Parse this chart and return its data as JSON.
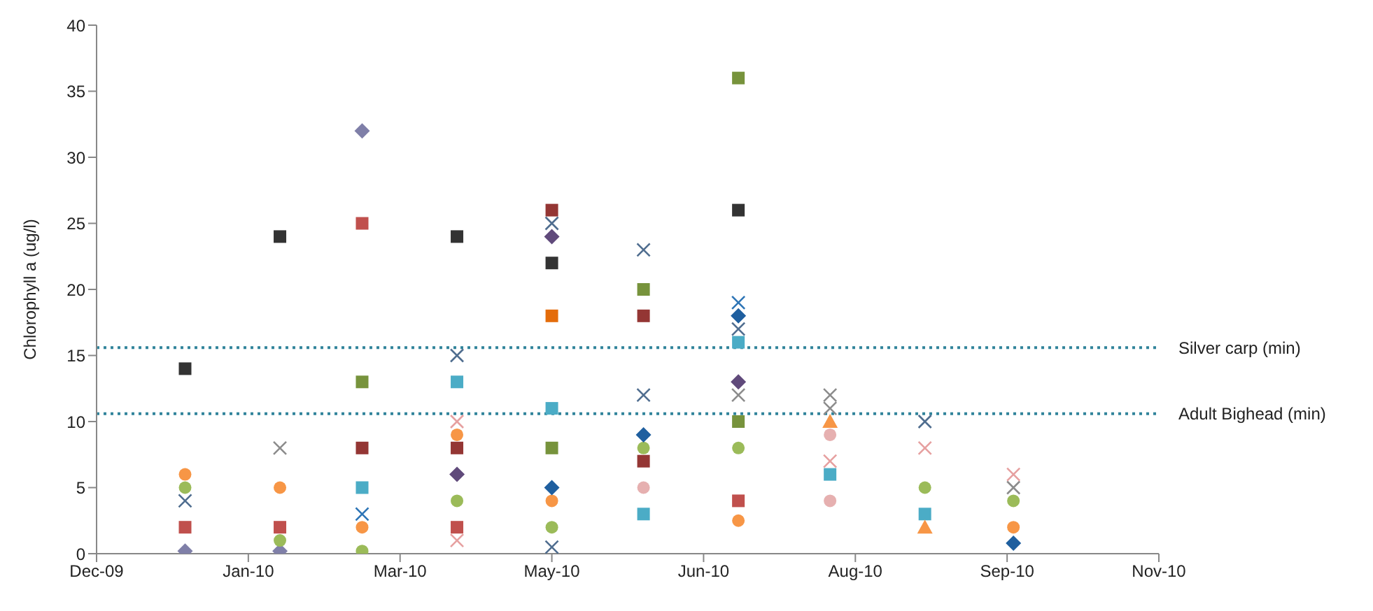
{
  "chart_data": {
    "type": "scatter",
    "ylabel": "Chlorophyll a (ug/l)",
    "xlim": [
      "2009-12-10",
      "2010-11-11"
    ],
    "xticks": [
      {
        "value": "2009-12-10",
        "label": "Dec-09"
      },
      {
        "value": "2010-01-27",
        "label": "Jan-10"
      },
      {
        "value": "2010-03-16",
        "label": "Mar-10"
      },
      {
        "value": "2010-05-03",
        "label": "May-10"
      },
      {
        "value": "2010-06-20",
        "label": "Jun-10"
      },
      {
        "value": "2010-08-07",
        "label": "Aug-10"
      },
      {
        "value": "2010-09-24",
        "label": "Sep-10"
      },
      {
        "value": "2010-11-11",
        "label": "Nov-10"
      }
    ],
    "ylim": [
      0,
      40
    ],
    "yticks": [
      0,
      5,
      10,
      15,
      20,
      25,
      30,
      35,
      40
    ],
    "grid": false,
    "legend": false,
    "ref_lines": [
      {
        "axis": "y",
        "value": 15.6,
        "label": "Silver carp (min)",
        "color": "#31849b",
        "line_style": "dotted"
      },
      {
        "axis": "y",
        "value": 10.6,
        "label": "Adult Bighead (min)",
        "color": "#31849b",
        "line_style": "dotted"
      }
    ],
    "series": [
      {
        "color": "#7f7fa8",
        "marker": "diamond",
        "x": [
          "2010-01-07",
          "2010-02-06",
          "2010-03-04"
        ],
        "values": [
          0.2,
          0.2,
          32
        ]
      },
      {
        "color": "#c0504d",
        "marker": "square",
        "x": [
          "2010-01-07",
          "2010-02-06",
          "2010-03-04",
          "2010-04-03",
          "2010-07-01"
        ],
        "values": [
          2,
          2,
          25,
          2,
          4
        ]
      },
      {
        "color": "#f79646",
        "marker": "circle",
        "x": [
          "2010-01-07",
          "2010-02-06",
          "2010-03-04",
          "2010-04-03",
          "2010-05-03",
          "2010-07-01",
          "2010-09-26"
        ],
        "values": [
          6,
          5,
          2,
          9,
          4,
          2.5,
          2
        ]
      },
      {
        "color": "#9bbb59",
        "marker": "circle",
        "x": [
          "2010-01-07",
          "2010-02-06",
          "2010-03-04",
          "2010-04-03",
          "2010-05-03",
          "2010-06-01",
          "2010-07-01",
          "2010-08-29",
          "2010-09-26"
        ],
        "values": [
          5,
          1,
          0.2,
          4,
          2,
          8,
          8,
          5,
          4
        ]
      },
      {
        "color": "#333333",
        "marker": "square",
        "x": [
          "2010-01-07",
          "2010-02-06",
          "2010-04-03",
          "2010-05-03",
          "2010-07-01"
        ],
        "values": [
          14,
          24,
          24,
          22,
          26
        ]
      },
      {
        "color": "#4f6d8f",
        "marker": "cross",
        "x": [
          "2010-01-07",
          "2010-04-03",
          "2010-05-03",
          "2010-05-03",
          "2010-06-01",
          "2010-06-01",
          "2010-07-01",
          "2010-08-29"
        ],
        "values": [
          4,
          15,
          25,
          0.5,
          23,
          12,
          17,
          10
        ]
      },
      {
        "color": "#4bacc6",
        "marker": "square",
        "x": [
          "2010-03-04",
          "2010-04-03",
          "2010-05-03",
          "2010-06-01",
          "2010-07-01",
          "2010-07-30",
          "2010-08-29"
        ],
        "values": [
          5,
          13,
          11,
          3,
          16,
          6,
          3
        ]
      },
      {
        "color": "#943634",
        "marker": "square",
        "x": [
          "2010-03-04",
          "2010-04-03",
          "2010-05-03",
          "2010-06-01",
          "2010-06-01"
        ],
        "values": [
          8,
          8,
          26,
          18,
          7
        ]
      },
      {
        "color": "#604a7b",
        "marker": "diamond",
        "x": [
          "2010-04-03",
          "2010-05-03",
          "2010-07-01"
        ],
        "values": [
          6,
          24,
          13
        ]
      },
      {
        "color": "#77933c",
        "marker": "square",
        "x": [
          "2010-03-04",
          "2010-05-03",
          "2010-06-01",
          "2010-07-01",
          "2010-07-01"
        ],
        "values": [
          13,
          8,
          20,
          36,
          10
        ]
      },
      {
        "color": "#e46c0a",
        "marker": "square",
        "x": [
          "2010-05-03"
        ],
        "values": [
          18
        ]
      },
      {
        "color": "#8c8c8c",
        "marker": "cross",
        "x": [
          "2010-02-06",
          "2010-07-01",
          "2010-07-30",
          "2010-07-30",
          "2010-09-26"
        ],
        "values": [
          8,
          12,
          12,
          11,
          5
        ]
      },
      {
        "color": "#e6a0a0",
        "marker": "cross",
        "x": [
          "2010-04-03",
          "2010-04-03",
          "2010-07-30",
          "2010-08-29",
          "2010-09-26"
        ],
        "values": [
          10,
          1,
          7,
          8,
          6
        ]
      },
      {
        "color": "#1f5f9f",
        "marker": "diamond",
        "x": [
          "2010-05-03",
          "2010-06-01",
          "2010-07-01",
          "2010-09-26"
        ],
        "values": [
          5,
          9,
          18,
          0.8
        ]
      },
      {
        "color": "#f79646",
        "marker": "triangle",
        "x": [
          "2010-07-30",
          "2010-08-29"
        ],
        "values": [
          10,
          2
        ]
      },
      {
        "color": "#e6b0b0",
        "marker": "circle",
        "x": [
          "2010-06-01",
          "2010-07-30",
          "2010-07-30"
        ],
        "values": [
          5,
          9,
          4
        ]
      },
      {
        "color": "#2e75b6",
        "marker": "cross",
        "x": [
          "2010-03-04",
          "2010-07-01"
        ],
        "values": [
          3,
          19
        ]
      }
    ]
  }
}
